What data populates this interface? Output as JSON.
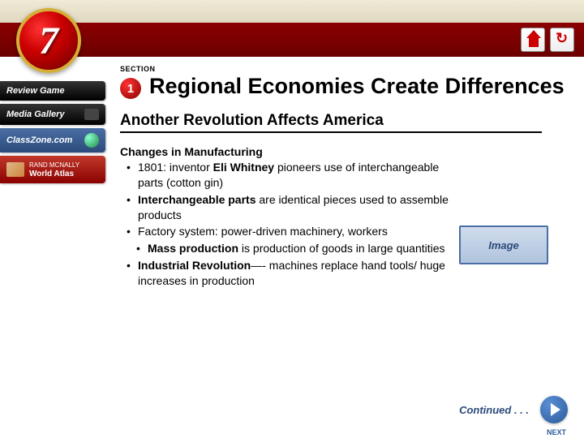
{
  "chapter_number": "7",
  "nav": {
    "review_game": "Review Game",
    "media_gallery": "Media Gallery",
    "classzone": "ClassZone.com",
    "atlas_brand": "RAND MCNALLY",
    "atlas_title": "World Atlas"
  },
  "section_label": "SECTION",
  "section_number": "1",
  "page_title": "Regional Economies Create Differences",
  "subtitle": "Another Revolution Affects America",
  "body": {
    "heading": "Changes in Manufacturing",
    "b1_pre": "1801:  inventor ",
    "b1_bold": "Eli Whitney",
    "b1_post": " pioneers use of interchangeable parts (cotton gin)",
    "b2_bold": "Interchangeable parts",
    "b2_post": " are identical pieces used to assemble products",
    "b3": "Factory system: power-driven machinery, workers",
    "b3s_bold": "Mass production",
    "b3s_post": " is production of goods in large quantities",
    "b4_bold": "Industrial Revolution",
    "b4_post": "—- machines replace hand tools/ huge increases in production"
  },
  "image_label": "Image",
  "continued": "Continued . . .",
  "next_label": "NEXT",
  "colors": {
    "accent_red": "#8b0000",
    "accent_blue": "#2a5a9a"
  }
}
